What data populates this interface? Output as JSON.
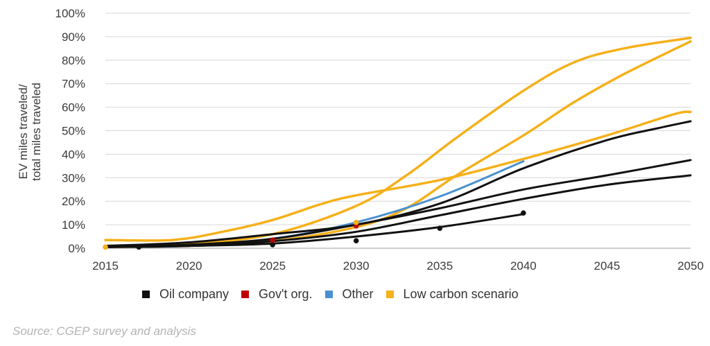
{
  "chart_data": {
    "type": "line",
    "ylabel": "EV miles traveled/ total miles traveled",
    "ylabel_lines": [
      "EV miles traveled/",
      "total miles traveled"
    ],
    "xlim": [
      2015,
      2050
    ],
    "ylim": [
      0,
      100
    ],
    "x_ticks": [
      "2015",
      "2020",
      "2025",
      "2030",
      "2035",
      "2040",
      "2045",
      "2050"
    ],
    "y_ticks": [
      "0%",
      "10%",
      "20%",
      "30%",
      "40%",
      "50%",
      "60%",
      "70%",
      "80%",
      "90%",
      "100%"
    ],
    "grid": "horizontal",
    "legend_position": "bottom",
    "legend": [
      {
        "label": "Oil company",
        "color": "#111111"
      },
      {
        "label": "Gov't org.",
        "color": "#c00000"
      },
      {
        "label": "Other",
        "color": "#4a90d0"
      },
      {
        "label": "Low carbon scenario",
        "color": "#f5b01a"
      }
    ],
    "series": [
      {
        "group": "Low carbon scenario",
        "color": "#f5b01a",
        "points": [
          [
            2015,
            3.5
          ],
          [
            2019,
            3.5
          ],
          [
            2022,
            7
          ],
          [
            2025,
            12
          ],
          [
            2028,
            19
          ],
          [
            2030,
            22.5
          ],
          [
            2035,
            29
          ],
          [
            2040,
            38
          ],
          [
            2045,
            48
          ],
          [
            2049,
            57
          ],
          [
            2050,
            58
          ]
        ]
      },
      {
        "group": "Low carbon scenario",
        "color": "#f5b01a",
        "points": [
          [
            2015,
            1
          ],
          [
            2020,
            2
          ],
          [
            2025,
            6
          ],
          [
            2030,
            18
          ],
          [
            2033,
            31
          ],
          [
            2036,
            47
          ],
          [
            2040,
            67
          ],
          [
            2043,
            79
          ],
          [
            2046,
            85
          ],
          [
            2050,
            89.5
          ]
        ]
      },
      {
        "group": "Low carbon scenario",
        "color": "#f5b01a",
        "points": [
          [
            2015,
            0.5
          ],
          [
            2020,
            1
          ],
          [
            2025,
            3
          ],
          [
            2030,
            9
          ],
          [
            2033,
            17
          ],
          [
            2036,
            31
          ],
          [
            2040,
            48
          ],
          [
            2043,
            62
          ],
          [
            2046,
            74
          ],
          [
            2050,
            88
          ]
        ]
      },
      {
        "group": "Other",
        "color": "#4a90d0",
        "points": [
          [
            2015,
            0.5
          ],
          [
            2020,
            1
          ],
          [
            2025,
            4
          ],
          [
            2030,
            11
          ],
          [
            2035,
            22
          ],
          [
            2040,
            37
          ]
        ]
      },
      {
        "group": "Oil company",
        "color": "#111111",
        "points": [
          [
            2015,
            1
          ],
          [
            2020,
            2.5
          ],
          [
            2025,
            6
          ],
          [
            2030,
            10
          ],
          [
            2035,
            19
          ],
          [
            2040,
            34
          ],
          [
            2045,
            46
          ],
          [
            2048,
            51
          ],
          [
            2050,
            54
          ]
        ]
      },
      {
        "group": "Oil company",
        "color": "#111111",
        "points": [
          [
            2015,
            0.5
          ],
          [
            2020,
            1.5
          ],
          [
            2025,
            4
          ],
          [
            2030,
            10
          ],
          [
            2035,
            17
          ],
          [
            2040,
            25
          ],
          [
            2045,
            31
          ],
          [
            2050,
            37.5
          ]
        ]
      },
      {
        "group": "Oil company",
        "color": "#111111",
        "points": [
          [
            2015,
            0.5
          ],
          [
            2020,
            1
          ],
          [
            2025,
            3
          ],
          [
            2030,
            7
          ],
          [
            2035,
            14
          ],
          [
            2040,
            21
          ],
          [
            2045,
            27
          ],
          [
            2050,
            31
          ]
        ]
      },
      {
        "group": "Oil company",
        "color": "#111111",
        "points": [
          [
            2015,
            0.5
          ],
          [
            2020,
            1
          ],
          [
            2025,
            2
          ],
          [
            2030,
            5
          ],
          [
            2035,
            9
          ],
          [
            2040,
            14.5
          ]
        ]
      }
    ],
    "markers": [
      {
        "group": "Oil company",
        "color": "#111111",
        "x": 2017,
        "y": 0.5
      },
      {
        "group": "Oil company",
        "color": "#111111",
        "x": 2025,
        "y": 1.5
      },
      {
        "group": "Oil company",
        "color": "#111111",
        "x": 2030,
        "y": 3.2
      },
      {
        "group": "Oil company",
        "color": "#111111",
        "x": 2035,
        "y": 8.5
      },
      {
        "group": "Oil company",
        "color": "#111111",
        "x": 2040,
        "y": 15
      },
      {
        "group": "Gov't org.",
        "color": "#c00000",
        "x": 2025,
        "y": 3.5
      },
      {
        "group": "Gov't org.",
        "color": "#c00000",
        "x": 2030,
        "y": 9.5
      },
      {
        "group": "Low carbon scenario",
        "color": "#f5b01a",
        "x": 2015,
        "y": 0.5
      },
      {
        "group": "Low carbon scenario",
        "color": "#f5b01a",
        "x": 2030,
        "y": 11
      }
    ]
  },
  "source": "Source: CGEP survey and analysis"
}
